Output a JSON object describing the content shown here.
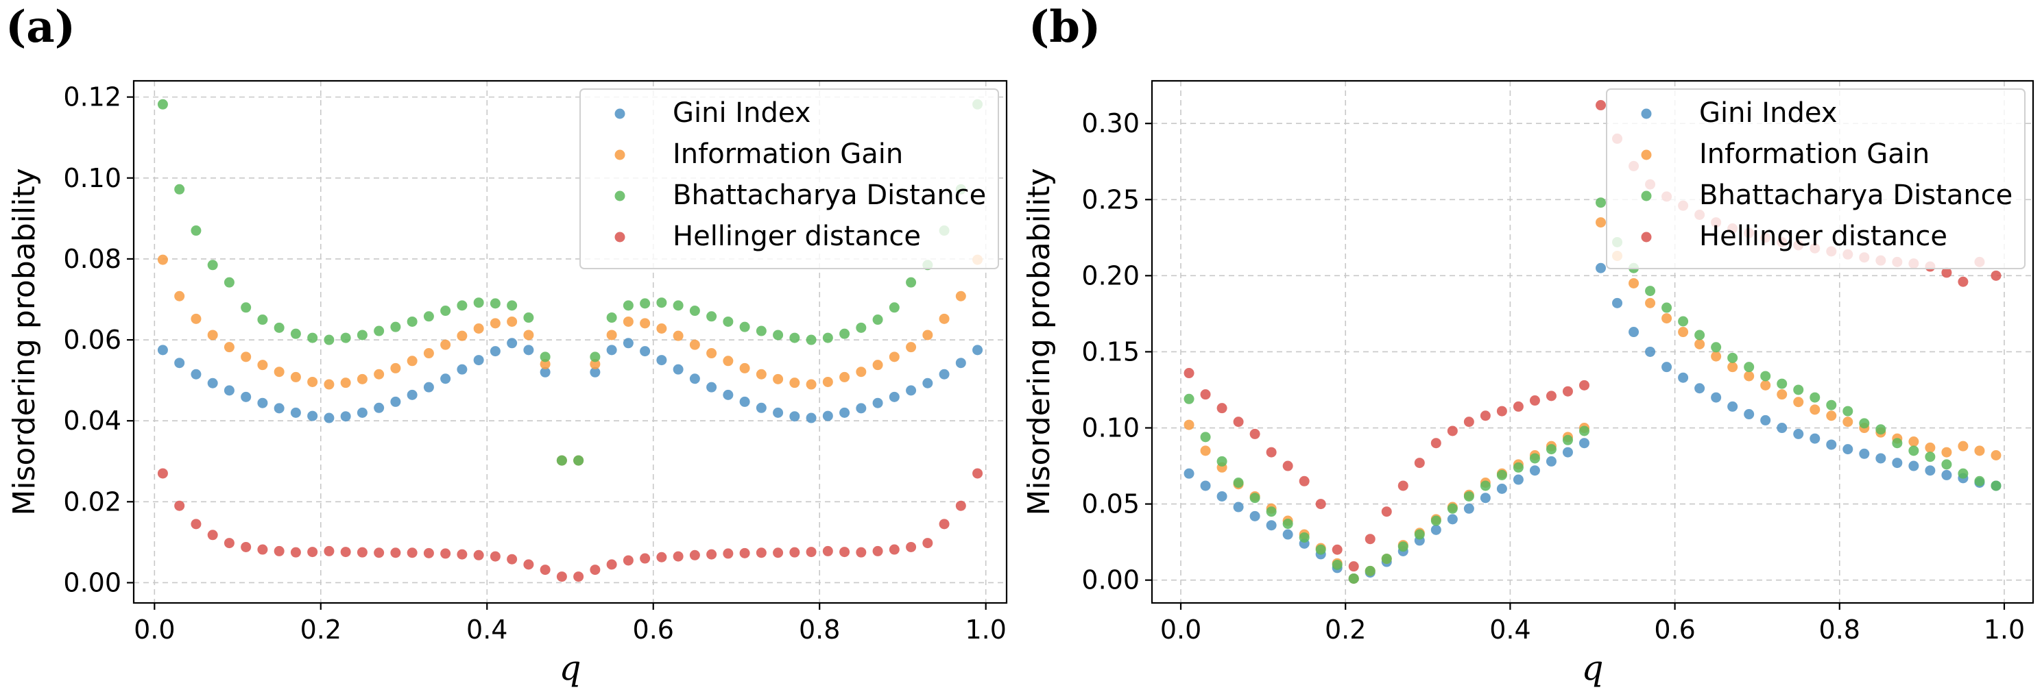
{
  "colors": {
    "gini": "#4f92c4",
    "info": "#f89c42",
    "bhatt": "#5cb85c",
    "hell": "#d9534f"
  },
  "chart_data": [
    {
      "id": "a",
      "type": "scatter",
      "panel_label": "(a)",
      "xlabel": "q",
      "ylabel": "Misordering probability",
      "xlim": [
        -0.025,
        1.025
      ],
      "ylim": [
        -0.005,
        0.124
      ],
      "xticks": [
        0.0,
        0.2,
        0.4,
        0.6,
        0.8,
        1.0
      ],
      "xtick_labels": [
        "0.0",
        "0.2",
        "0.4",
        "0.6",
        "0.8",
        "1.0"
      ],
      "yticks": [
        0.0,
        0.02,
        0.04,
        0.06,
        0.08,
        0.1,
        0.12
      ],
      "ytick_labels": [
        "0.00",
        "0.02",
        "0.04",
        "0.06",
        "0.08",
        "0.10",
        "0.12"
      ],
      "grid": true,
      "legend_position": "top-right",
      "x": [
        0.01,
        0.03,
        0.05,
        0.07,
        0.09,
        0.11,
        0.13,
        0.15,
        0.17,
        0.19,
        0.21,
        0.23,
        0.25,
        0.27,
        0.29,
        0.31,
        0.33,
        0.35,
        0.37,
        0.39,
        0.41,
        0.43,
        0.45,
        0.47,
        0.49,
        0.51,
        0.53,
        0.55,
        0.57,
        0.59,
        0.61,
        0.63,
        0.65,
        0.67,
        0.69,
        0.71,
        0.73,
        0.75,
        0.77,
        0.79,
        0.81,
        0.83,
        0.85,
        0.87,
        0.89,
        0.91,
        0.93,
        0.95,
        0.97,
        0.99
      ],
      "series": [
        {
          "name": "Gini Index",
          "color_key": "gini",
          "values": [
            0.0575,
            0.0543,
            0.0515,
            0.0493,
            0.0475,
            0.0459,
            0.0444,
            0.0431,
            0.042,
            0.0412,
            0.0407,
            0.0411,
            0.042,
            0.0432,
            0.0447,
            0.0464,
            0.0483,
            0.0504,
            0.0527,
            0.055,
            0.0572,
            0.0592,
            0.0575,
            0.052,
            0.0302,
            0.0302,
            0.052,
            0.0575,
            0.0592,
            0.0572,
            0.055,
            0.0527,
            0.0504,
            0.0483,
            0.0464,
            0.0447,
            0.0432,
            0.042,
            0.0411,
            0.0407,
            0.0412,
            0.042,
            0.0431,
            0.0444,
            0.0459,
            0.0475,
            0.0493,
            0.0515,
            0.0543,
            0.0575
          ]
        },
        {
          "name": "Information Gain",
          "color_key": "info",
          "values": [
            0.0798,
            0.0708,
            0.0652,
            0.0612,
            0.0582,
            0.0558,
            0.0538,
            0.0521,
            0.0508,
            0.0496,
            0.049,
            0.0494,
            0.0503,
            0.0515,
            0.053,
            0.0548,
            0.0567,
            0.0588,
            0.061,
            0.0628,
            0.0641,
            0.0645,
            0.0612,
            0.054,
            0.0302,
            0.0302,
            0.054,
            0.0612,
            0.0645,
            0.0641,
            0.0628,
            0.061,
            0.0588,
            0.0567,
            0.0548,
            0.053,
            0.0515,
            0.0503,
            0.0494,
            0.049,
            0.0496,
            0.0508,
            0.0521,
            0.0538,
            0.0558,
            0.0582,
            0.0612,
            0.0652,
            0.0708,
            0.0798
          ]
        },
        {
          "name": "Bhattacharya Distance",
          "color_key": "bhatt",
          "values": [
            0.1182,
            0.0972,
            0.087,
            0.0785,
            0.0742,
            0.068,
            0.065,
            0.063,
            0.0615,
            0.0605,
            0.06,
            0.0605,
            0.0612,
            0.0622,
            0.0632,
            0.0645,
            0.0658,
            0.0672,
            0.0685,
            0.0692,
            0.069,
            0.0685,
            0.0655,
            0.0558,
            0.0302,
            0.0302,
            0.0558,
            0.0655,
            0.0685,
            0.069,
            0.0692,
            0.0685,
            0.0672,
            0.0658,
            0.0645,
            0.0632,
            0.0622,
            0.0612,
            0.0605,
            0.06,
            0.0605,
            0.0615,
            0.063,
            0.065,
            0.068,
            0.0742,
            0.0785,
            0.087,
            0.0972,
            0.1182
          ]
        },
        {
          "name": "Hellinger distance",
          "color_key": "hell",
          "values": [
            0.027,
            0.019,
            0.0145,
            0.0118,
            0.0098,
            0.0088,
            0.0082,
            0.0078,
            0.0075,
            0.0076,
            0.0078,
            0.0076,
            0.0075,
            0.0074,
            0.0074,
            0.0074,
            0.0073,
            0.0072,
            0.007,
            0.0068,
            0.0065,
            0.0058,
            0.0045,
            0.0032,
            0.0015,
            0.0015,
            0.0032,
            0.0045,
            0.0055,
            0.006,
            0.0063,
            0.0065,
            0.0068,
            0.007,
            0.0072,
            0.0073,
            0.0074,
            0.0074,
            0.0075,
            0.0076,
            0.0078,
            0.0076,
            0.0075,
            0.0078,
            0.0082,
            0.0088,
            0.0098,
            0.0145,
            0.019,
            0.027
          ]
        }
      ]
    },
    {
      "id": "b",
      "type": "scatter",
      "panel_label": "(b)",
      "xlabel": "q",
      "ylabel": "Misordering probability",
      "xlim": [
        -0.035,
        1.035
      ],
      "ylim": [
        -0.015,
        0.328
      ],
      "xticks": [
        0.0,
        0.2,
        0.4,
        0.6,
        0.8,
        1.0
      ],
      "xtick_labels": [
        "0.0",
        "0.2",
        "0.4",
        "0.6",
        "0.8",
        "1.0"
      ],
      "yticks": [
        0.0,
        0.05,
        0.1,
        0.15,
        0.2,
        0.25,
        0.3
      ],
      "ytick_labels": [
        "0.00",
        "0.05",
        "0.10",
        "0.15",
        "0.20",
        "0.25",
        "0.30"
      ],
      "grid": true,
      "legend_position": "top-right",
      "x": [
        0.01,
        0.03,
        0.05,
        0.07,
        0.09,
        0.11,
        0.13,
        0.15,
        0.17,
        0.19,
        0.21,
        0.23,
        0.25,
        0.27,
        0.29,
        0.31,
        0.33,
        0.35,
        0.37,
        0.39,
        0.41,
        0.43,
        0.45,
        0.47,
        0.49,
        0.51,
        0.53,
        0.55,
        0.57,
        0.59,
        0.61,
        0.63,
        0.65,
        0.67,
        0.69,
        0.71,
        0.73,
        0.75,
        0.77,
        0.79,
        0.81,
        0.83,
        0.85,
        0.87,
        0.89,
        0.91,
        0.93,
        0.95,
        0.97,
        0.99
      ],
      "series": [
        {
          "name": "Gini Index",
          "color_key": "gini",
          "values": [
            0.07,
            0.062,
            0.055,
            0.048,
            0.042,
            0.036,
            0.03,
            0.024,
            0.017,
            0.008,
            0.001,
            0.005,
            0.012,
            0.019,
            0.026,
            0.033,
            0.04,
            0.047,
            0.054,
            0.06,
            0.066,
            0.072,
            0.078,
            0.084,
            0.09,
            0.205,
            0.182,
            0.163,
            0.15,
            0.14,
            0.133,
            0.126,
            0.12,
            0.114,
            0.109,
            0.105,
            0.1,
            0.096,
            0.093,
            0.089,
            0.086,
            0.083,
            0.08,
            0.077,
            0.075,
            0.072,
            0.069,
            0.067,
            0.064,
            0.062
          ]
        },
        {
          "name": "Information Gain",
          "color_key": "info",
          "values": [
            0.102,
            0.085,
            0.074,
            0.063,
            0.055,
            0.047,
            0.039,
            0.03,
            0.021,
            0.011,
            0.001,
            0.006,
            0.014,
            0.023,
            0.031,
            0.04,
            0.048,
            0.056,
            0.064,
            0.07,
            0.076,
            0.082,
            0.088,
            0.094,
            0.1,
            0.235,
            0.213,
            0.195,
            0.182,
            0.172,
            0.163,
            0.155,
            0.147,
            0.14,
            0.134,
            0.128,
            0.122,
            0.117,
            0.112,
            0.108,
            0.104,
            0.1,
            0.097,
            0.093,
            0.091,
            0.087,
            0.084,
            0.088,
            0.085,
            0.082
          ]
        },
        {
          "name": "Bhattacharya Distance",
          "color_key": "bhatt",
          "values": [
            0.119,
            0.094,
            0.078,
            0.064,
            0.054,
            0.045,
            0.037,
            0.028,
            0.02,
            0.01,
            0.001,
            0.006,
            0.014,
            0.022,
            0.03,
            0.039,
            0.047,
            0.055,
            0.062,
            0.069,
            0.074,
            0.08,
            0.086,
            0.092,
            0.098,
            0.248,
            0.222,
            0.205,
            0.19,
            0.179,
            0.17,
            0.161,
            0.153,
            0.146,
            0.14,
            0.134,
            0.129,
            0.125,
            0.12,
            0.115,
            0.111,
            0.103,
            0.099,
            0.09,
            0.085,
            0.081,
            0.076,
            0.07,
            0.065,
            0.062
          ]
        },
        {
          "name": "Hellinger distance",
          "color_key": "hell",
          "values": [
            0.136,
            0.122,
            0.113,
            0.104,
            0.096,
            0.084,
            0.075,
            0.065,
            0.05,
            0.02,
            0.009,
            0.027,
            0.045,
            0.062,
            0.077,
            0.09,
            0.098,
            0.104,
            0.108,
            0.111,
            0.114,
            0.118,
            0.121,
            0.124,
            0.128,
            0.312,
            0.29,
            0.272,
            0.26,
            0.252,
            0.246,
            0.24,
            0.235,
            0.231,
            0.228,
            0.225,
            0.222,
            0.22,
            0.218,
            0.216,
            0.214,
            0.212,
            0.21,
            0.209,
            0.208,
            0.206,
            0.202,
            0.196,
            0.209,
            0.2
          ]
        }
      ]
    }
  ]
}
